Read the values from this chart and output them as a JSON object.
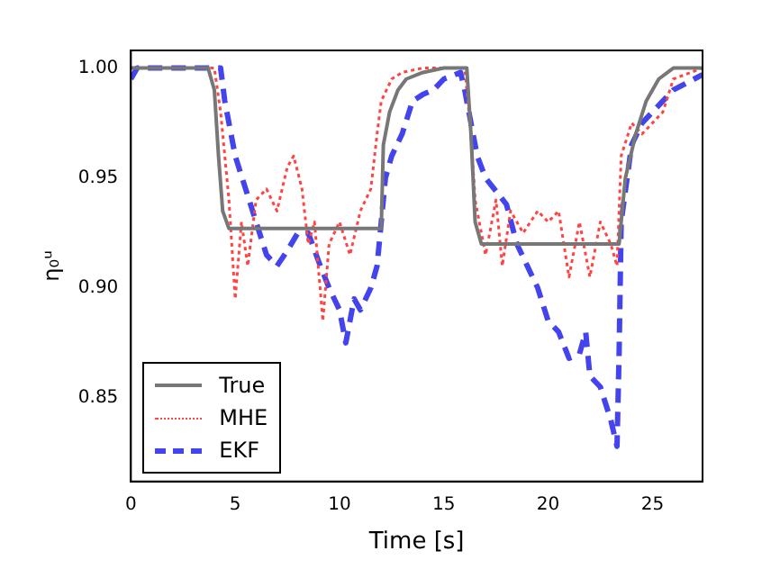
{
  "chart_data": {
    "type": "line",
    "xlabel": "Time [s]",
    "ylabel": "η₀ᵘ",
    "xlim": [
      0,
      27.4
    ],
    "ylim": [
      0.812,
      1.008
    ],
    "xticks": [
      0,
      5,
      10,
      15,
      20,
      25
    ],
    "yticks": [
      0.85,
      {
        "value": 0.9,
        "label": "0.90"
      },
      0.95,
      {
        "value": 1.0,
        "label": "1.00"
      }
    ],
    "grid": false,
    "legend": "bottom left",
    "marker": "none",
    "series": [
      {
        "name": "True",
        "color": "#777777",
        "line_style": "solid",
        "x": [
          0,
          3.7,
          4.0,
          4.2,
          4.4,
          4.7,
          12.0,
          12.1,
          12.4,
          12.8,
          13.2,
          14,
          15,
          16.1,
          16.3,
          16.5,
          16.8,
          23.4,
          23.7,
          24.2,
          24.7,
          25.3,
          26,
          27.4
        ],
        "values": [
          1.0,
          1.0,
          0.99,
          0.96,
          0.935,
          0.927,
          0.927,
          0.965,
          0.98,
          0.99,
          0.995,
          0.998,
          1.0,
          1.0,
          0.97,
          0.93,
          0.92,
          0.92,
          0.95,
          0.97,
          0.985,
          0.995,
          1.0,
          1.0
        ]
      },
      {
        "name": "MHE",
        "color": "#ff4444",
        "line_style": "dotted",
        "x": [
          0,
          4.0,
          4.3,
          4.5,
          4.7,
          5.0,
          5.3,
          5.6,
          6.0,
          6.5,
          7.0,
          7.5,
          7.8,
          8.2,
          8.5,
          8.8,
          9.2,
          9.5,
          10,
          10.5,
          11,
          11.5,
          11.8,
          12,
          12.5,
          13,
          14,
          16,
          16.3,
          16.5,
          17,
          17.5,
          17.8,
          18.2,
          18.8,
          19.5,
          20,
          20.5,
          21,
          21.5,
          22,
          22.5,
          23,
          23.3,
          23.5,
          24,
          24.5,
          25,
          25.5,
          26,
          27.4
        ],
        "values": [
          1.0,
          1.0,
          0.98,
          0.96,
          0.94,
          0.895,
          0.93,
          0.91,
          0.94,
          0.945,
          0.935,
          0.955,
          0.96,
          0.945,
          0.92,
          0.93,
          0.885,
          0.92,
          0.93,
          0.915,
          0.935,
          0.945,
          0.97,
          0.985,
          0.995,
          0.998,
          1.0,
          1.0,
          0.97,
          0.94,
          0.915,
          0.94,
          0.91,
          0.935,
          0.925,
          0.935,
          0.93,
          0.935,
          0.905,
          0.93,
          0.905,
          0.93,
          0.92,
          0.91,
          0.96,
          0.975,
          0.97,
          0.975,
          0.98,
          0.995,
          1.0
        ]
      },
      {
        "name": "EKF",
        "color": "#4444ee",
        "line_style": "dashed",
        "x": [
          0,
          0.3,
          4.3,
          4.5,
          5,
          5.5,
          6,
          6.5,
          7,
          7.5,
          8,
          8.5,
          9,
          9.5,
          10,
          10.3,
          10.7,
          11,
          11.5,
          11.8,
          12,
          12.2,
          12.5,
          13,
          13.5,
          14,
          14.5,
          15,
          15.8,
          16,
          16.3,
          16.6,
          17,
          18,
          18.5,
          19,
          19.5,
          20,
          20.5,
          21,
          21.5,
          21.8,
          22,
          22.5,
          23,
          23.3,
          23.4,
          23.5,
          24,
          24.5,
          25,
          25.5,
          26,
          27,
          27.4
        ],
        "values": [
          0.995,
          1.0,
          1.0,
          0.985,
          0.96,
          0.945,
          0.93,
          0.915,
          0.91,
          0.917,
          0.925,
          0.925,
          0.912,
          0.9,
          0.89,
          0.875,
          0.895,
          0.89,
          0.9,
          0.91,
          0.93,
          0.95,
          0.96,
          0.97,
          0.985,
          0.988,
          0.99,
          0.995,
          0.998,
          0.99,
          0.975,
          0.96,
          0.95,
          0.938,
          0.92,
          0.91,
          0.9,
          0.885,
          0.88,
          0.868,
          0.87,
          0.88,
          0.86,
          0.855,
          0.84,
          0.828,
          0.87,
          0.93,
          0.965,
          0.975,
          0.98,
          0.985,
          0.99,
          0.995,
          0.997
        ]
      }
    ]
  }
}
